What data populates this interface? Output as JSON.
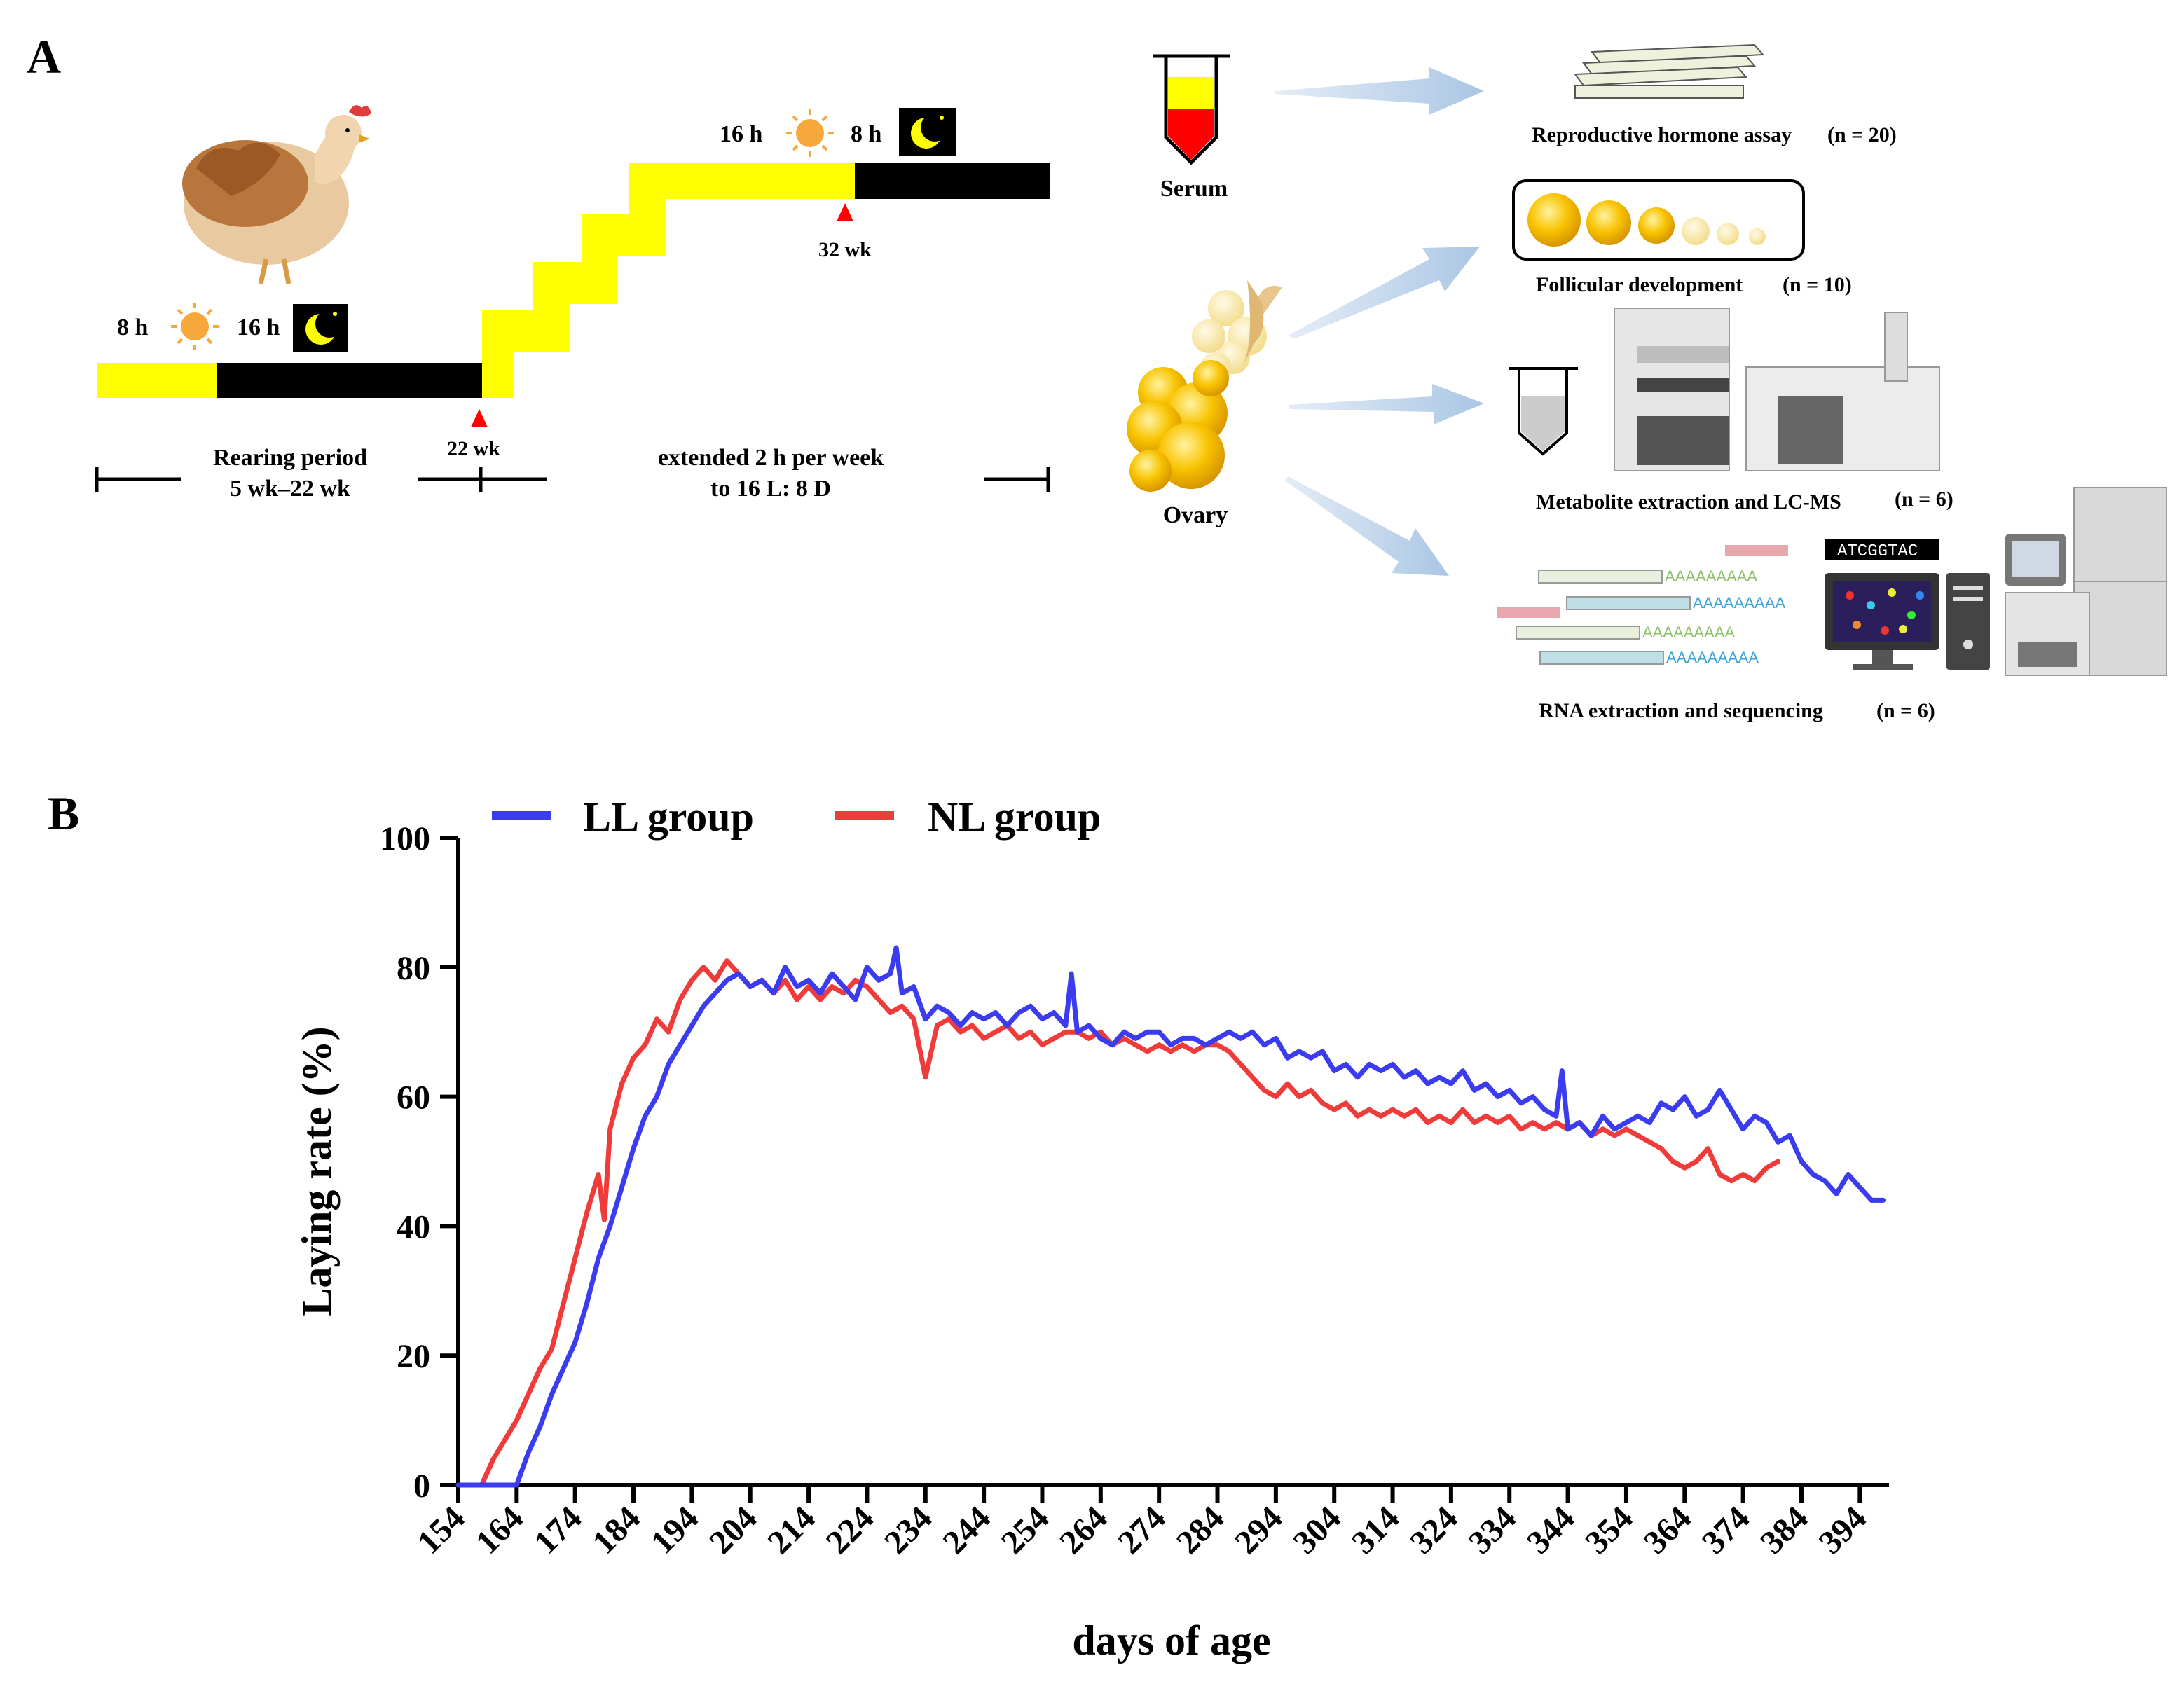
{
  "panel_a": {
    "letter": "A",
    "schedule_initial": {
      "light": "8 h",
      "dark": "16 h"
    },
    "schedule_final": {
      "light": "16 h",
      "dark": "8 h"
    },
    "marker_22": "22 wk",
    "marker_32": "32 wk",
    "rearing_line1": "Rearing period",
    "rearing_line2": "5 wk–22 wk",
    "extended_line1": "extended 2 h per week",
    "extended_line2": "to 16 L: 8 D",
    "serum_label": "Serum",
    "ovary_label": "Ovary",
    "hormone_label": "Reproductive hormone assay",
    "hormone_n": "(n = 20)",
    "follicle_label": "Follicular development",
    "follicle_n": "(n = 10)",
    "metabolite_label": "Metabolite extraction and LC-MS",
    "metabolite_n": "(n = 6)",
    "rna_label": "RNA extraction and sequencing",
    "rna_n": "(n = 6)",
    "dna_sequence": "ATCGGTAC",
    "polya": "AAAAAAAAA",
    "colors": {
      "light": "#ffff00",
      "dark": "#000000",
      "sun": "#f7a83b",
      "arrow": "#b9cfe6",
      "follicle": "#f8c300"
    }
  },
  "panel_b": {
    "letter": "B",
    "chart_data": {
      "type": "line",
      "xlabel": "days of age",
      "ylabel": "Laying rate (%)",
      "xlim": [
        154,
        399
      ],
      "ylim": [
        0,
        100
      ],
      "yticks": [
        0,
        20,
        40,
        60,
        80,
        100
      ],
      "xticks": [
        154,
        164,
        174,
        184,
        194,
        204,
        214,
        224,
        234,
        244,
        254,
        264,
        274,
        284,
        294,
        304,
        314,
        324,
        334,
        344,
        354,
        364,
        374,
        384,
        394
      ],
      "legend_position": "top-left",
      "grid": false,
      "series": [
        {
          "name": "LL group",
          "color": "#3b3bf0",
          "x": [
            154,
            164,
            166,
            168,
            170,
            172,
            174,
            176,
            178,
            180,
            182,
            184,
            186,
            188,
            190,
            192,
            194,
            196,
            198,
            200,
            202,
            204,
            206,
            208,
            210,
            212,
            214,
            216,
            218,
            220,
            222,
            224,
            226,
            228,
            229,
            230,
            232,
            234,
            236,
            238,
            240,
            242,
            244,
            246,
            248,
            250,
            252,
            254,
            256,
            258,
            259,
            260,
            262,
            264,
            266,
            268,
            270,
            272,
            274,
            276,
            278,
            280,
            282,
            284,
            286,
            288,
            290,
            292,
            294,
            296,
            298,
            300,
            302,
            304,
            306,
            308,
            310,
            312,
            314,
            316,
            318,
            320,
            322,
            324,
            326,
            328,
            330,
            332,
            334,
            336,
            338,
            340,
            342,
            343,
            344,
            346,
            348,
            350,
            352,
            354,
            356,
            358,
            360,
            362,
            364,
            366,
            368,
            370,
            372,
            374,
            376,
            378,
            380,
            382,
            384,
            386,
            388,
            390,
            392,
            394,
            396,
            398
          ],
          "y": [
            0,
            0,
            5,
            9,
            14,
            18,
            22,
            28,
            35,
            40,
            46,
            52,
            57,
            60,
            65,
            68,
            71,
            74,
            76,
            78,
            79,
            77,
            78,
            76,
            80,
            77,
            78,
            76,
            79,
            77,
            75,
            80,
            78,
            79,
            83,
            76,
            77,
            72,
            74,
            73,
            71,
            73,
            72,
            73,
            71,
            73,
            74,
            72,
            73,
            71,
            79,
            70,
            71,
            69,
            68,
            70,
            69,
            70,
            70,
            68,
            69,
            69,
            68,
            69,
            70,
            69,
            70,
            68,
            69,
            66,
            67,
            66,
            67,
            64,
            65,
            63,
            65,
            64,
            65,
            63,
            64,
            62,
            63,
            62,
            64,
            61,
            62,
            60,
            61,
            59,
            60,
            58,
            57,
            64,
            55,
            56,
            54,
            57,
            55,
            56,
            57,
            56,
            59,
            58,
            60,
            57,
            58,
            61,
            58,
            55,
            57,
            56,
            53,
            54,
            50,
            48,
            47,
            45,
            48,
            46,
            44,
            44
          ]
        },
        {
          "name": "NL group",
          "color": "#f03b3b",
          "x": [
            154,
            158,
            160,
            162,
            164,
            166,
            168,
            170,
            172,
            174,
            176,
            178,
            179,
            180,
            182,
            184,
            186,
            188,
            190,
            192,
            194,
            196,
            198,
            200,
            202,
            204,
            206,
            208,
            210,
            212,
            214,
            216,
            218,
            220,
            222,
            224,
            226,
            228,
            230,
            232,
            234,
            236,
            238,
            240,
            242,
            244,
            246,
            248,
            250,
            252,
            254,
            256,
            258,
            260,
            262,
            264,
            266,
            268,
            270,
            272,
            274,
            276,
            278,
            280,
            282,
            284,
            286,
            288,
            290,
            292,
            294,
            296,
            298,
            300,
            302,
            304,
            306,
            308,
            310,
            312,
            314,
            316,
            318,
            320,
            322,
            324,
            326,
            328,
            330,
            332,
            334,
            336,
            338,
            340,
            342,
            344,
            346,
            348,
            350,
            352,
            354,
            356,
            358,
            360,
            362,
            364,
            366,
            368,
            370,
            372,
            374,
            376,
            378,
            380
          ],
          "y": [
            0,
            0,
            4,
            7,
            10,
            14,
            18,
            21,
            28,
            35,
            42,
            48,
            41,
            55,
            62,
            66,
            68,
            72,
            70,
            75,
            78,
            80,
            78,
            81,
            79,
            77,
            78,
            76,
            78,
            75,
            77,
            75,
            77,
            76,
            78,
            77,
            75,
            73,
            74,
            72,
            63,
            71,
            72,
            70,
            71,
            69,
            70,
            71,
            69,
            70,
            68,
            69,
            70,
            70,
            69,
            70,
            68,
            69,
            68,
            67,
            68,
            67,
            68,
            67,
            68,
            68,
            67,
            65,
            63,
            61,
            60,
            62,
            60,
            61,
            59,
            58,
            59,
            57,
            58,
            57,
            58,
            57,
            58,
            56,
            57,
            56,
            58,
            56,
            57,
            56,
            57,
            55,
            56,
            55,
            56,
            55,
            56,
            54,
            55,
            54,
            55,
            54,
            53,
            52,
            50,
            49,
            50,
            52,
            48,
            47,
            48,
            47,
            49,
            50
          ]
        }
      ]
    }
  }
}
